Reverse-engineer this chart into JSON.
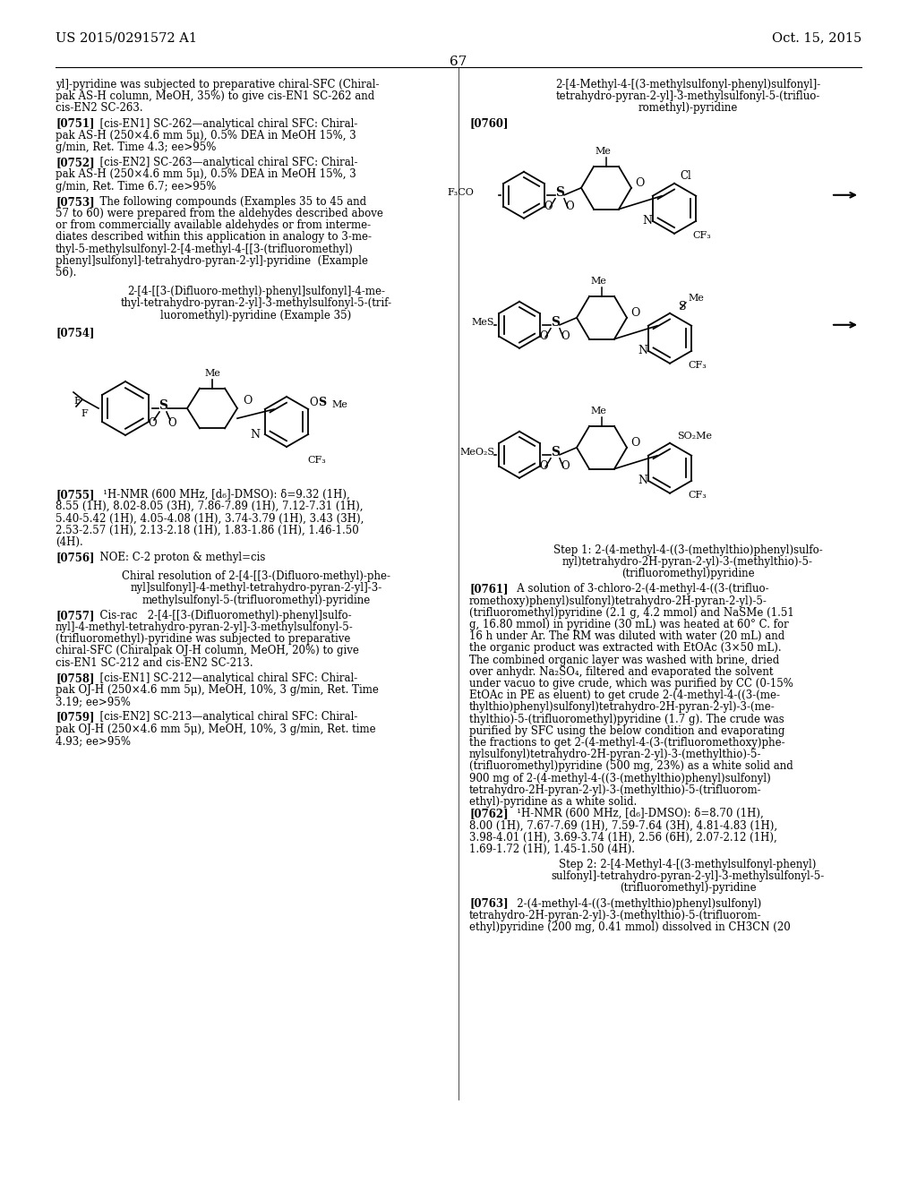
{
  "page_header_left": "US 2015/0291572 A1",
  "page_header_right": "Oct. 15, 2015",
  "page_number": "67",
  "background_color": "#ffffff"
}
